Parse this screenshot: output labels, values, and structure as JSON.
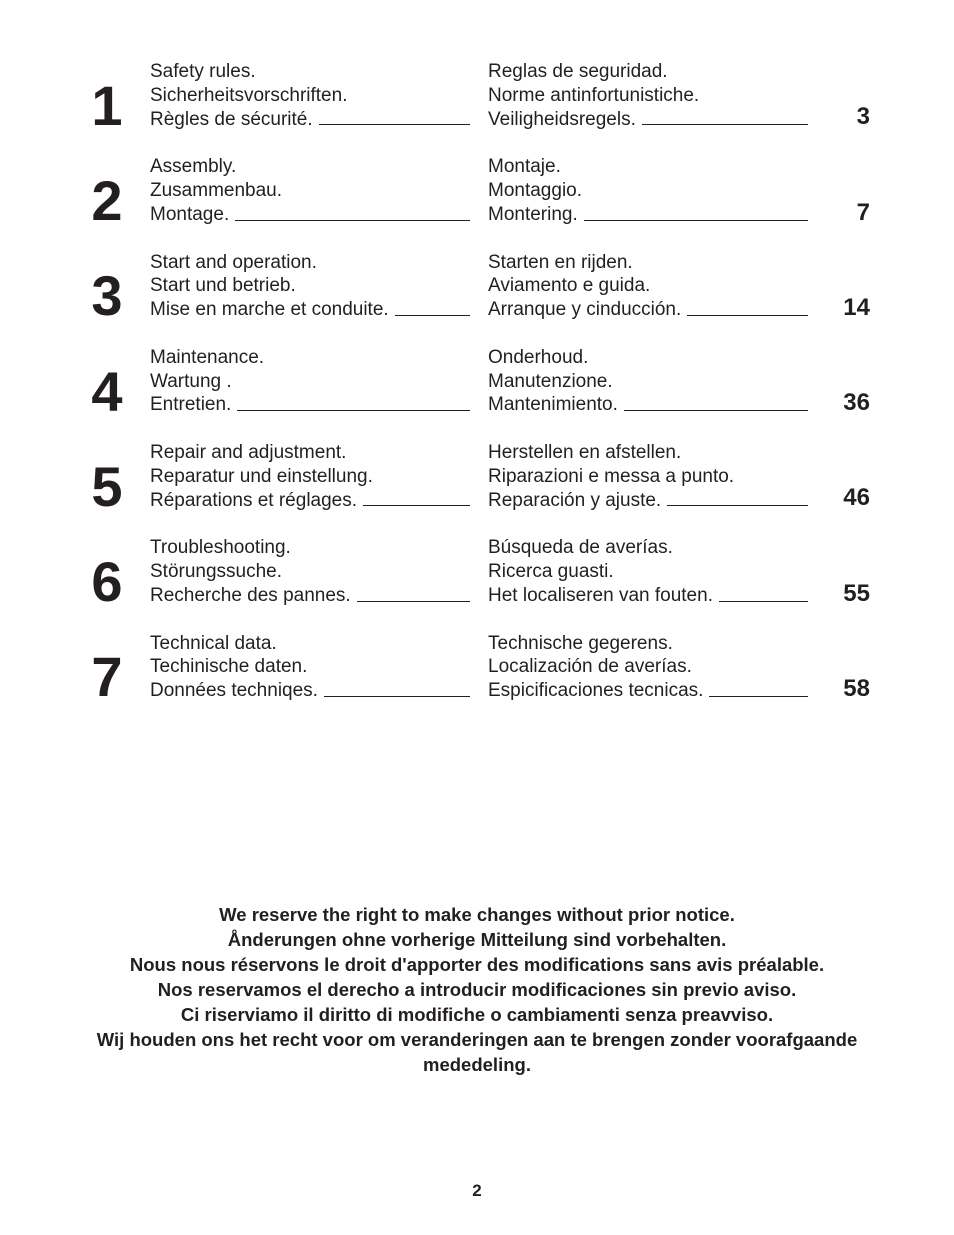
{
  "toc": [
    {
      "num": "1",
      "left": [
        "Safety rules.",
        "Sicherheitsvorschriften.",
        "Règles de sécurité."
      ],
      "right": [
        "Reglas de seguridad.",
        "Norme antinfortunistiche.",
        "Veiligheidsregels."
      ],
      "page": "3"
    },
    {
      "num": "2",
      "left": [
        "Assembly.",
        "Zusammenbau.",
        "Montage."
      ],
      "right": [
        "Montaje.",
        "Montaggio.",
        "Montering."
      ],
      "page": "7"
    },
    {
      "num": "3",
      "left": [
        "Start and operation.",
        "Start und betrieb.",
        "Mise en marche et conduite."
      ],
      "right": [
        "Starten en rijden.",
        "Aviamento e guida.",
        "Arranque y cinducción."
      ],
      "page": "14"
    },
    {
      "num": "4",
      "left": [
        "Maintenance.",
        "Wartung .",
        "Entretien."
      ],
      "right": [
        "Onderhoud.",
        "Manutenzione.",
        "Mantenimiento."
      ],
      "page": "36"
    },
    {
      "num": "5",
      "left": [
        "Repair and adjustment.",
        "Reparatur und einstellung.",
        "Réparations et réglages."
      ],
      "right": [
        "Herstellen en afstellen.",
        "Riparazioni e messa a punto.",
        "Reparación y ajuste."
      ],
      "page": "46"
    },
    {
      "num": "6",
      "left": [
        "Troubleshooting.",
        "Störungssuche.",
        "Recherche des pannes."
      ],
      "right": [
        "Búsqueda de averías.",
        "Ricerca guasti.",
        "Het localiseren van fouten."
      ],
      "page": "55"
    },
    {
      "num": "7",
      "left": [
        "Technical data.",
        "Techinische daten.",
        "Données techniqes."
      ],
      "right": [
        "Technische gegerens.",
        "Localización de averías.",
        "Espicificaciones tecnicas."
      ],
      "page": "58"
    }
  ],
  "notice": [
    "We reserve the right to make changes without prior notice.",
    "Ånderungen ohne vorherige Mitteilung sind vorbehalten.",
    "Nous nous réservons le droit d'apporter des modifications sans avis préalable.",
    "Nos reservamos el derecho a introducir modificaciones sin previo aviso.",
    "Ci riserviamo il diritto di modifiche o cambiamenti senza preavviso.",
    "Wij houden ons het recht voor om veranderingen aan te brengen zonder voorafgaande mededeling."
  ],
  "page_number": "2",
  "colors": {
    "text": "#231f20",
    "background": "#ffffff"
  },
  "typography": {
    "body_fontsize": 19,
    "chapter_num_fontsize": 56,
    "page_ref_fontsize": 24,
    "notice_fontsize": 18.5
  }
}
